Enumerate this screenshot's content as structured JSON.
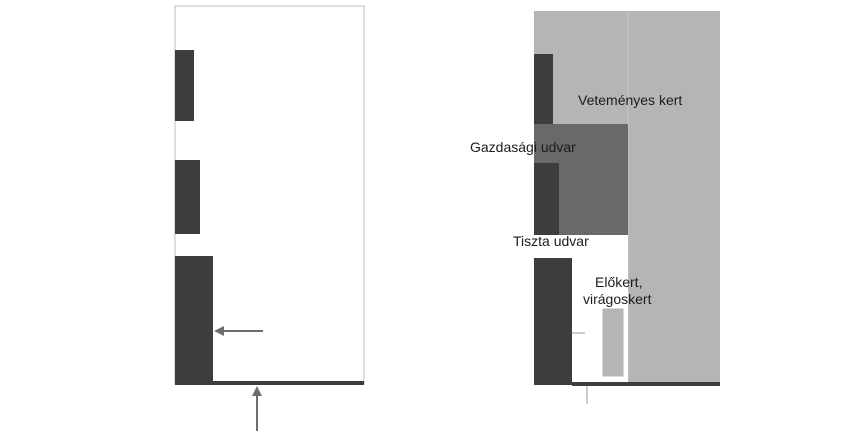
{
  "diagram": {
    "left_plan": {
      "parts": [
        "empty-lot",
        "outbuilding-1",
        "outbuilding-2",
        "house",
        "street-edge",
        "side-arrow",
        "street-arrow"
      ]
    },
    "right_plan": {
      "labels": {
        "vegetable_garden": "Veteményes kert",
        "farm_yard": "Gazdasági udvar",
        "clean_yard": "Tiszta udvar",
        "front_garden_line1": "Előkert,",
        "front_garden_line2": "virágoskert"
      }
    },
    "colors": {
      "building": "#3d3d3d",
      "farm_yard": "#696969",
      "garden": "#b5b5b5",
      "outline": "#bdbdbd",
      "arrow": "#6e6e6e"
    }
  }
}
